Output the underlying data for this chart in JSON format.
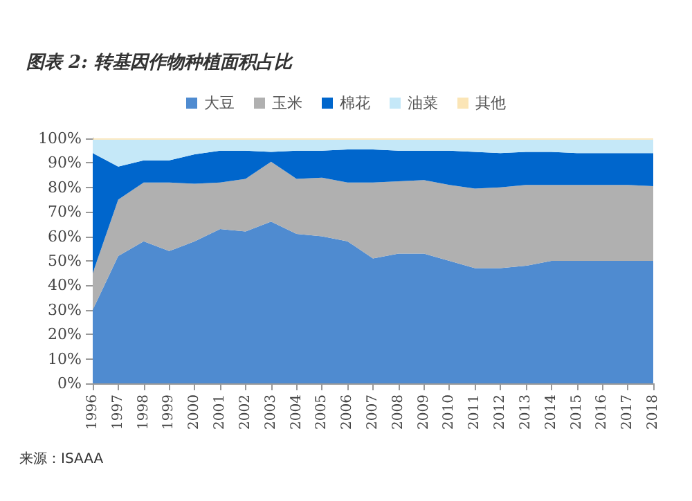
{
  "chart_data": {
    "type": "area",
    "stacked": true,
    "title": "图表 2: 转基因作物种植面积占比",
    "annotations": [
      "来源：ISAAA"
    ],
    "categories": [
      "1996",
      "1997",
      "1998",
      "1999",
      "2000",
      "2001",
      "2002",
      "2003",
      "2004",
      "2005",
      "2006",
      "2007",
      "2008",
      "2009",
      "2010",
      "2011",
      "2012",
      "2013",
      "2014",
      "2015",
      "2016",
      "2017",
      "2018"
    ],
    "series": [
      {
        "name": "大豆",
        "color": "#4f8bd0",
        "values": [
          30,
          52,
          58,
          54,
          58,
          63,
          62,
          66,
          61,
          60,
          58,
          51,
          53,
          53,
          50,
          47,
          47,
          48,
          50,
          50,
          50,
          50,
          50
        ]
      },
      {
        "name": "玉米",
        "color": "#b0b0b0",
        "values": [
          15,
          23,
          24,
          28,
          23.5,
          19,
          21.5,
          24.5,
          22.5,
          24,
          24,
          31,
          29.5,
          30,
          31,
          32.5,
          33,
          33,
          31,
          31,
          31,
          31,
          30.5
        ]
      },
      {
        "name": "棉花",
        "color": "#0066cc",
        "values": [
          49,
          13.5,
          9,
          9,
          12,
          13,
          11.5,
          4,
          11.5,
          11,
          13.5,
          13.5,
          12.5,
          12,
          14,
          15,
          14,
          13.5,
          13.5,
          13,
          13,
          13,
          13.5
        ]
      },
      {
        "name": "油菜",
        "color": "#c5e8f8",
        "values": [
          5.5,
          11,
          8.5,
          8.5,
          6,
          4.5,
          4.5,
          5,
          4.5,
          4.5,
          4,
          4,
          4.5,
          4.5,
          4.5,
          5,
          5.5,
          5,
          5,
          5.5,
          5.5,
          5.5,
          5.5
        ]
      },
      {
        "name": "其他",
        "color": "#fbe5b6",
        "values": [
          0.5,
          0.5,
          0.5,
          0.5,
          0.5,
          0.5,
          0.5,
          0.5,
          0.5,
          0.5,
          0.5,
          0.5,
          0.5,
          0.5,
          0.5,
          0.5,
          0.5,
          0.5,
          0.5,
          0.5,
          0.5,
          0.5,
          0.5
        ]
      }
    ],
    "ylim": [
      0,
      100
    ],
    "yticks": [
      {
        "value": 0,
        "label": "0%"
      },
      {
        "value": 10,
        "label": "10%"
      },
      {
        "value": 20,
        "label": "20%"
      },
      {
        "value": 30,
        "label": "30%"
      },
      {
        "value": 40,
        "label": "40%"
      },
      {
        "value": 50,
        "label": "50%"
      },
      {
        "value": 60,
        "label": "60%"
      },
      {
        "value": 70,
        "label": "70%"
      },
      {
        "value": 80,
        "label": "80%"
      },
      {
        "value": 90,
        "label": "90%"
      },
      {
        "value": 100,
        "label": "100%"
      }
    ],
    "legend": "top",
    "grid": false
  }
}
